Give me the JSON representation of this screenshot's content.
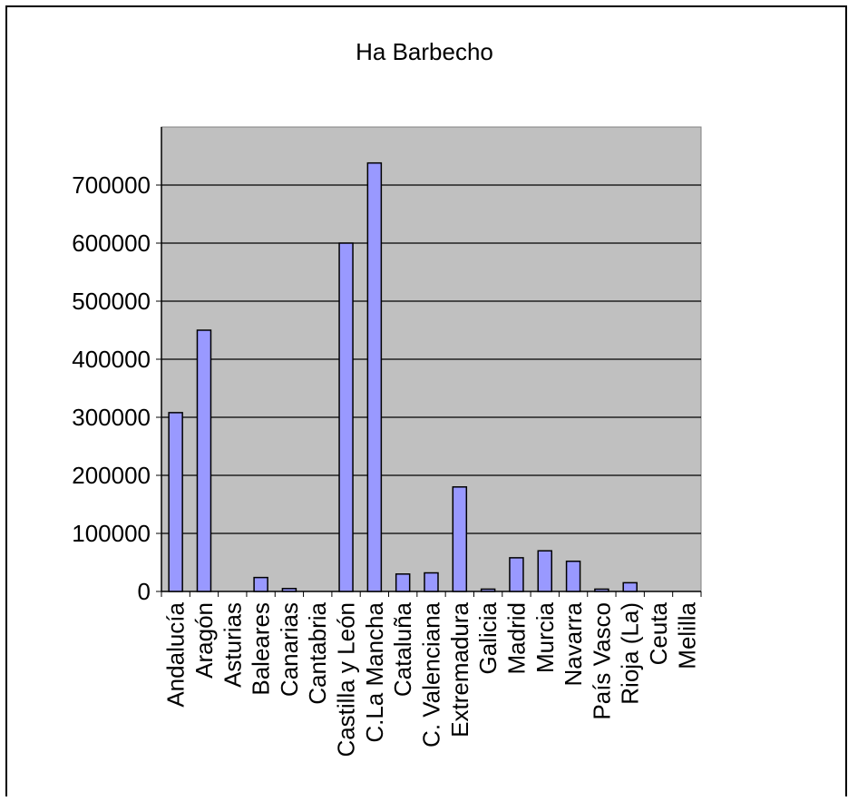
{
  "chart_data": {
    "type": "bar",
    "title": "Ha Barbecho",
    "xlabel": "",
    "ylabel": "",
    "ylim": [
      0,
      800000
    ],
    "yticks": [
      0,
      100000,
      200000,
      300000,
      400000,
      500000,
      600000,
      700000
    ],
    "ytick_labels": [
      "0",
      "100000",
      "200000",
      "300000",
      "400000",
      "500000",
      "600000",
      "700000"
    ],
    "grid": true,
    "legend": "none",
    "categories": [
      "Andalucía",
      "Aragón",
      "Asturias",
      "Baleares",
      "Canarias",
      "Cantabria",
      "Castilla y León",
      "C.La Mancha",
      "Cataluña",
      "C. Valenciana",
      "Extremadura",
      "Galicia",
      "Madrid",
      "Murcia",
      "Navarra",
      "País Vasco",
      "Rioja (La)",
      "Ceuta",
      "Melilla"
    ],
    "values": [
      308000,
      450000,
      0,
      24000,
      5000,
      0,
      600000,
      738000,
      30000,
      32000,
      180000,
      4000,
      58000,
      70000,
      52000,
      4000,
      15000,
      0,
      0
    ],
    "colors": {
      "bar_fill": "#9999ff",
      "bar_stroke": "#000000",
      "plot_background": "#c0c0c0",
      "grid": "#000000"
    }
  }
}
